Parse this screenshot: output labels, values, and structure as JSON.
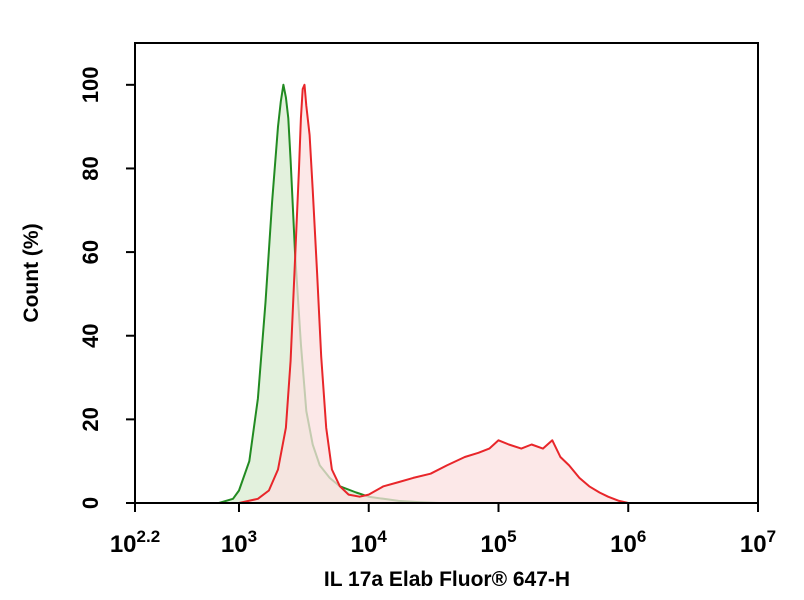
{
  "chart_data": {
    "type": "area",
    "xlabel": "IL 17a Elab Fluor® 647-H",
    "ylabel": "Count (%)",
    "xscale": "log",
    "xlim": [
      158,
      10000000
    ],
    "ylim": [
      0,
      110
    ],
    "grid": false,
    "legend": "none",
    "x_ticks": [
      {
        "value": 158,
        "base": "10",
        "exp": "2.2"
      },
      {
        "value": 1000,
        "base": "10",
        "exp": "3"
      },
      {
        "value": 10000,
        "base": "10",
        "exp": "4"
      },
      {
        "value": 100000,
        "base": "10",
        "exp": "5"
      },
      {
        "value": 1000000,
        "base": "10",
        "exp": "6"
      },
      {
        "value": 10000000,
        "base": "10",
        "exp": "7"
      }
    ],
    "y_ticks": [
      "0",
      "20",
      "40",
      "60",
      "80",
      "100"
    ],
    "series": [
      {
        "color": "#228b22",
        "fill": "#d9ecd2",
        "x": [
          700,
          900,
          1000,
          1200,
          1400,
          1600,
          1800,
          2000,
          2100,
          2200,
          2300,
          2400,
          2500,
          2700,
          3000,
          3300,
          3700,
          4200,
          5000,
          6000,
          8000,
          10000,
          13000,
          17000,
          25000,
          35000
        ],
        "y": [
          0,
          1,
          3,
          10,
          25,
          48,
          72,
          90,
          96,
          100,
          97,
          92,
          82,
          60,
          38,
          22,
          14,
          9,
          6,
          4,
          2.5,
          1.5,
          1,
          0.5,
          0.2,
          0
        ]
      },
      {
        "color": "#e8262a",
        "fill": "#fbe0e0",
        "x": [
          1000,
          1400,
          1700,
          2000,
          2300,
          2500,
          2700,
          2900,
          3000,
          3100,
          3200,
          3300,
          3500,
          3700,
          4000,
          4300,
          4700,
          5200,
          6000,
          7000,
          8500,
          10000,
          13000,
          17000,
          22000,
          30000,
          40000,
          55000,
          70000,
          85000,
          100000,
          120000,
          150000,
          180000,
          220000,
          260000,
          300000,
          350000,
          420000,
          500000,
          600000,
          700000,
          850000,
          1000000
        ],
        "y": [
          0,
          1,
          3,
          8,
          18,
          34,
          58,
          80,
          92,
          99,
          100,
          95,
          88,
          75,
          55,
          35,
          18,
          8,
          4,
          2,
          1.5,
          2,
          4,
          5,
          6,
          7,
          9,
          11,
          12,
          13,
          15,
          14,
          13,
          14,
          13,
          15,
          11,
          9,
          6,
          4,
          2.5,
          1.5,
          0.5,
          0
        ]
      }
    ]
  }
}
